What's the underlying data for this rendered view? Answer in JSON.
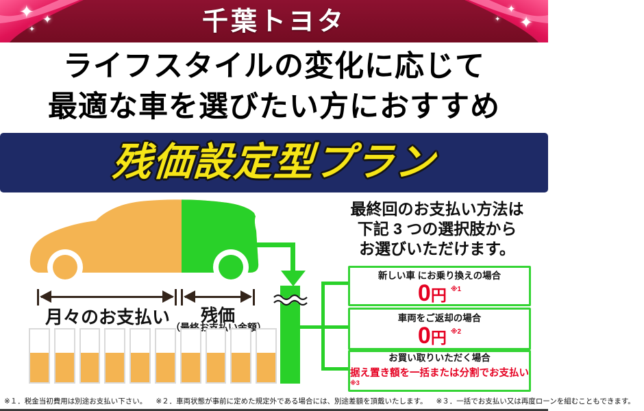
{
  "header": {
    "brand": "千葉トヨタ",
    "bg_color": "#7c0e26",
    "ribbon_color": "#e8186a",
    "sparkle": "✦"
  },
  "headline": {
    "line1": "ライフスタイルの変化に応じて",
    "line2": "最適な車を選びたい方におすすめ"
  },
  "banner": {
    "label": "残価設定型プラン",
    "bg_color": "#1e2a66",
    "text_color": "#f6e517"
  },
  "diagram": {
    "monthly_label": "月々のお支払い",
    "residual_label": "残価",
    "residual_sublabel": "（最終お支払い金額）",
    "colors": {
      "monthly": "#f4b452",
      "residual": "#29d129"
    },
    "bars": {
      "count": 10,
      "fill_percent": 56
    }
  },
  "options": {
    "intro": [
      "最終回のお支払い方法は",
      "下記 3 つの選択肢から",
      "お選びいただけます。"
    ],
    "boxes": [
      {
        "case": "新しい車 にお乗り換えの場合",
        "value": "0",
        "unit": "円",
        "note": "※1"
      },
      {
        "case": "車両をご返却の場合",
        "value": "0",
        "unit": "円",
        "note": "※2"
      },
      {
        "case": "お買い取りいただく場合",
        "value": "据え置き額を一括または分割でお支払い",
        "note": "※3"
      }
    ]
  },
  "footnote": {
    "notes": [
      "※１．税金当初費用は別途お支払い下さい。",
      "※２．車両状態が事前に定めた規定外である場合には、別途差額を頂戴いたします。",
      "※３．一括でお支払い又は再度ローンを組むこともできます。"
    ]
  }
}
